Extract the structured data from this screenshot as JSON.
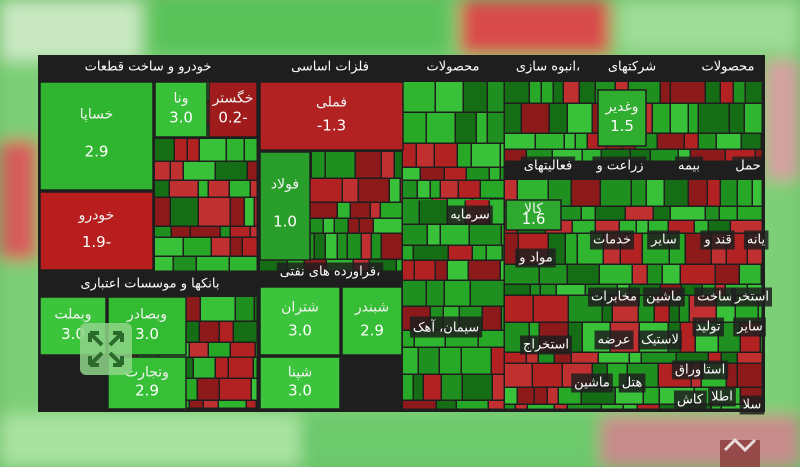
{
  "sectors": [
    "خودرو و ساخت قطعات",
    "فلزات اساسی",
    "محصولات",
    "انبوه سازی،",
    "شرکتهای",
    "محصولات",
    "فعالیتهای",
    "زراعت و",
    "بیمه",
    "حمل",
    "سرمایه",
    "خدمات",
    "سایر",
    "قند و",
    "یانه",
    "مواد و",
    "فراورده های نفتی،",
    "بانکها و موسسات اعتباری",
    "مخابرات",
    "ماشین",
    "ساخت",
    "استخر",
    "سیمان، آهک",
    "استخراج",
    "عرضه",
    "لاستیک",
    "هتل",
    "ماشین",
    "تولید",
    "سایر",
    "استا",
    "وراق",
    "اطلا",
    "کاش",
    "سلا"
  ],
  "tiles": [
    {
      "label": "خساپا",
      "value": "2.9",
      "color": "#2fb52f"
    },
    {
      "label": "خودرو",
      "value": "1.9-",
      "color": "#b81e1e"
    },
    {
      "label": "وبملت",
      "value": "3.0",
      "color": "#3cc43c"
    },
    {
      "label": "وبصادر",
      "value": "3.0",
      "color": "#33bb33"
    },
    {
      "label": "وتجارت",
      "value": "2.9",
      "color": "#37c037"
    },
    {
      "label": "فملی",
      "value": "-1.3",
      "color": "#b22222"
    },
    {
      "label": "فولاد",
      "value": "1.0",
      "color": "#2a9e2a"
    },
    {
      "label": "شتران",
      "value": "3.0",
      "color": "#3cc43c"
    },
    {
      "label": "شبندر",
      "value": "2.9",
      "color": "#35bd35"
    },
    {
      "label": "شپنا",
      "value": "3.0",
      "color": "#3cc43c"
    },
    {
      "label": "کالا",
      "value": "1.6",
      "color": "#2fa82f"
    },
    {
      "label": "وغدیر",
      "value": "1.5",
      "color": "#2fae2f"
    },
    {
      "label": "ونا",
      "value": "3.0",
      "color": "#38c038"
    },
    {
      "label": "خگستر",
      "value": "0.2-",
      "color": "#a01c1c"
    }
  ]
}
